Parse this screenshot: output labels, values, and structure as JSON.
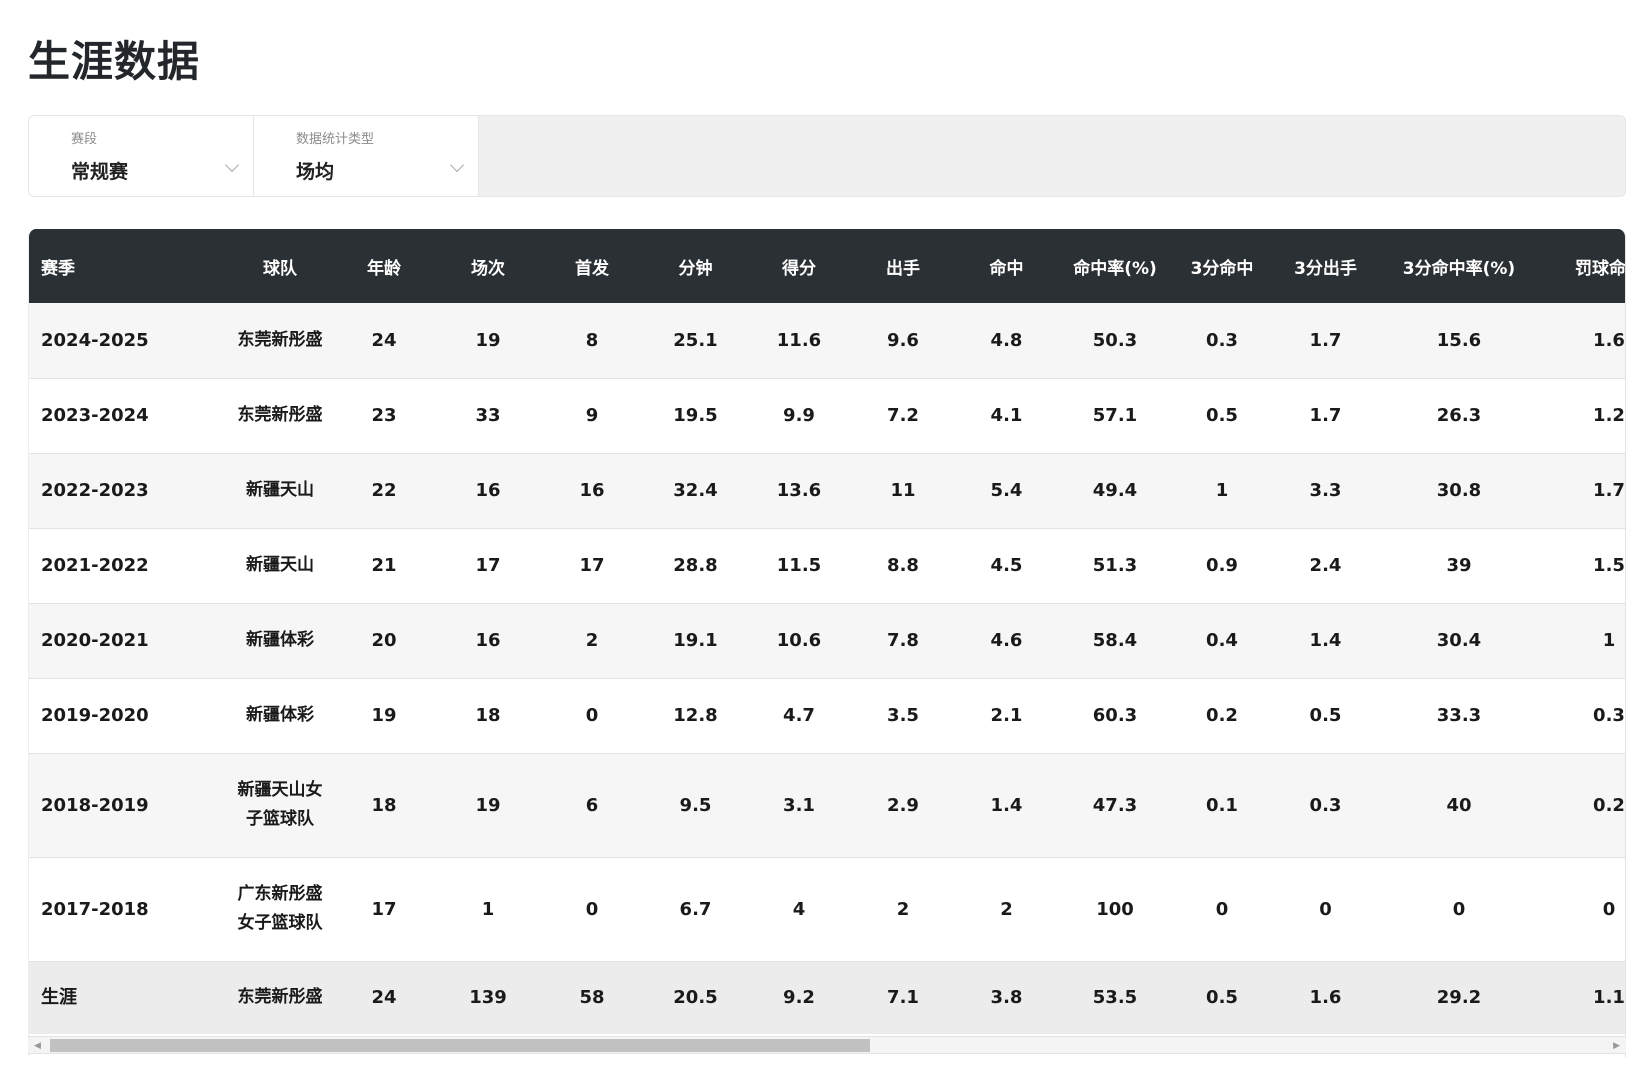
{
  "title": "生涯数据",
  "filters": [
    {
      "label": "赛段",
      "value": "常规赛"
    },
    {
      "label": "数据统计类型",
      "value": "场均"
    }
  ],
  "table": {
    "headers": [
      "赛季",
      "球队",
      "年龄",
      "场次",
      "首发",
      "分钟",
      "得分",
      "出手",
      "命中",
      "命中率(%)",
      "3分命中",
      "3分出手",
      "3分命中率(%)",
      "罚球命中"
    ],
    "rows": [
      [
        "2024-2025",
        "东莞新彤盛",
        "24",
        "19",
        "8",
        "25.1",
        "11.6",
        "9.6",
        "4.8",
        "50.3",
        "0.3",
        "1.7",
        "15.6",
        "1.6"
      ],
      [
        "2023-2024",
        "东莞新彤盛",
        "23",
        "33",
        "9",
        "19.5",
        "9.9",
        "7.2",
        "4.1",
        "57.1",
        "0.5",
        "1.7",
        "26.3",
        "1.2"
      ],
      [
        "2022-2023",
        "新疆天山",
        "22",
        "16",
        "16",
        "32.4",
        "13.6",
        "11",
        "5.4",
        "49.4",
        "1",
        "3.3",
        "30.8",
        "1.7"
      ],
      [
        "2021-2022",
        "新疆天山",
        "21",
        "17",
        "17",
        "28.8",
        "11.5",
        "8.8",
        "4.5",
        "51.3",
        "0.9",
        "2.4",
        "39",
        "1.5"
      ],
      [
        "2020-2021",
        "新疆体彩",
        "20",
        "16",
        "2",
        "19.1",
        "10.6",
        "7.8",
        "4.6",
        "58.4",
        "0.4",
        "1.4",
        "30.4",
        "1"
      ],
      [
        "2019-2020",
        "新疆体彩",
        "19",
        "18",
        "0",
        "12.8",
        "4.7",
        "3.5",
        "2.1",
        "60.3",
        "0.2",
        "0.5",
        "33.3",
        "0.3"
      ],
      [
        "2018-2019",
        "新疆天山女子篮球队",
        "18",
        "19",
        "6",
        "9.5",
        "3.1",
        "2.9",
        "1.4",
        "47.3",
        "0.1",
        "0.3",
        "40",
        "0.2"
      ],
      [
        "2017-2018",
        "广东新彤盛女子篮球队",
        "17",
        "1",
        "0",
        "6.7",
        "4",
        "2",
        "2",
        "100",
        "0",
        "0",
        "0",
        "0"
      ]
    ],
    "career": [
      "生涯",
      "东莞新彤盛",
      "24",
      "139",
      "58",
      "20.5",
      "9.2",
      "7.1",
      "3.8",
      "53.5",
      "0.5",
      "1.6",
      "29.2",
      "1.1"
    ]
  },
  "colors": {
    "header_bg": "#2b3034",
    "row_alt": "#f6f6f6",
    "career_bg": "#ececec"
  }
}
